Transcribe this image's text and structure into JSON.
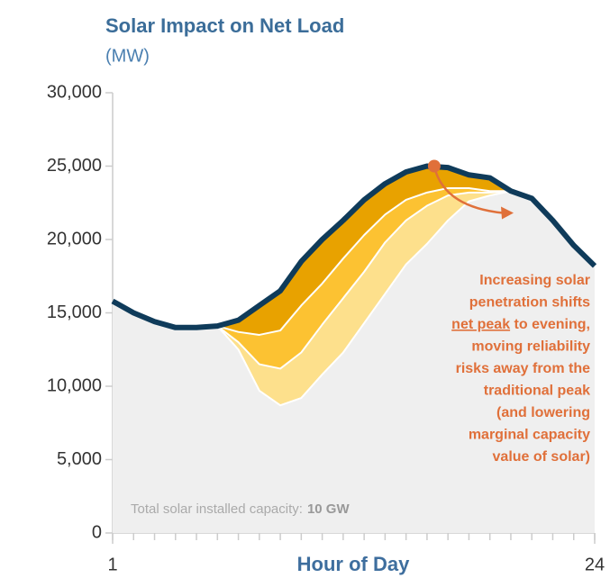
{
  "chart_data": {
    "type": "area",
    "title": "Solar Impact on Net Load",
    "subtitle": "(MW)",
    "x_label": "Hour of Day",
    "x": [
      1,
      2,
      3,
      4,
      5,
      6,
      7,
      8,
      9,
      10,
      11,
      12,
      13,
      14,
      15,
      16,
      17,
      18,
      19,
      20,
      21,
      22,
      23,
      24
    ],
    "xlim": [
      1,
      24
    ],
    "xticks": [
      1,
      24
    ],
    "ylim": [
      0,
      30000
    ],
    "yticks": [
      {
        "value": 0,
        "label": "0"
      },
      {
        "value": 5000,
        "label": "5,000"
      },
      {
        "value": 10000,
        "label": "10,000"
      },
      {
        "value": 15000,
        "label": "15,000"
      },
      {
        "value": 20000,
        "label": "20,000"
      },
      {
        "value": 25000,
        "label": "25,000"
      },
      {
        "value": 30000,
        "label": "30,000"
      }
    ],
    "series": [
      {
        "color": "#e8a200",
        "line_color": "#0f3b5a",
        "values": [
          15800,
          15000,
          14400,
          14000,
          14000,
          14100,
          14500,
          15500,
          16500,
          18500,
          20000,
          21300,
          22700,
          23800,
          24600,
          25000,
          24900,
          24400,
          24200,
          23300,
          22800,
          21300,
          19600,
          18200
        ]
      },
      {
        "color": "#fcc232",
        "line_color": "#ffffff",
        "values": [
          15800,
          15000,
          14400,
          14000,
          14000,
          14100,
          13700,
          13500,
          13800,
          15500,
          17000,
          18700,
          20300,
          21700,
          22700,
          23200,
          23500,
          23500,
          23300,
          23300,
          22800,
          21300,
          19600,
          18200
        ]
      },
      {
        "color": "#fde08c",
        "line_color": "#ffffff",
        "values": [
          15800,
          15000,
          14400,
          14000,
          14000,
          14100,
          13000,
          11500,
          11200,
          12300,
          14200,
          16000,
          17800,
          19800,
          21300,
          22300,
          23000,
          23200,
          23200,
          23300,
          22800,
          21300,
          19600,
          18200
        ]
      },
      {
        "color": "#efefef",
        "line_color": "#ffffff",
        "values": [
          15800,
          15000,
          14400,
          14000,
          14000,
          14100,
          12500,
          9700,
          8700,
          9200,
          10800,
          12300,
          14300,
          16300,
          18300,
          19700,
          21300,
          22600,
          23000,
          23300,
          22800,
          21300,
          19600,
          18200
        ]
      }
    ],
    "annotation": {
      "color": "#e0703a",
      "lines": [
        "Increasing solar",
        "penetration shifts",
        {
          "underlined": "net peak",
          "rest": " to evening,"
        },
        "moving reliability",
        "risks away from the",
        "traditional peak",
        "(and lowering",
        "marginal capacity",
        "value of solar)"
      ]
    },
    "note": "Total solar installed capacity:",
    "note_value": "10 GW"
  }
}
